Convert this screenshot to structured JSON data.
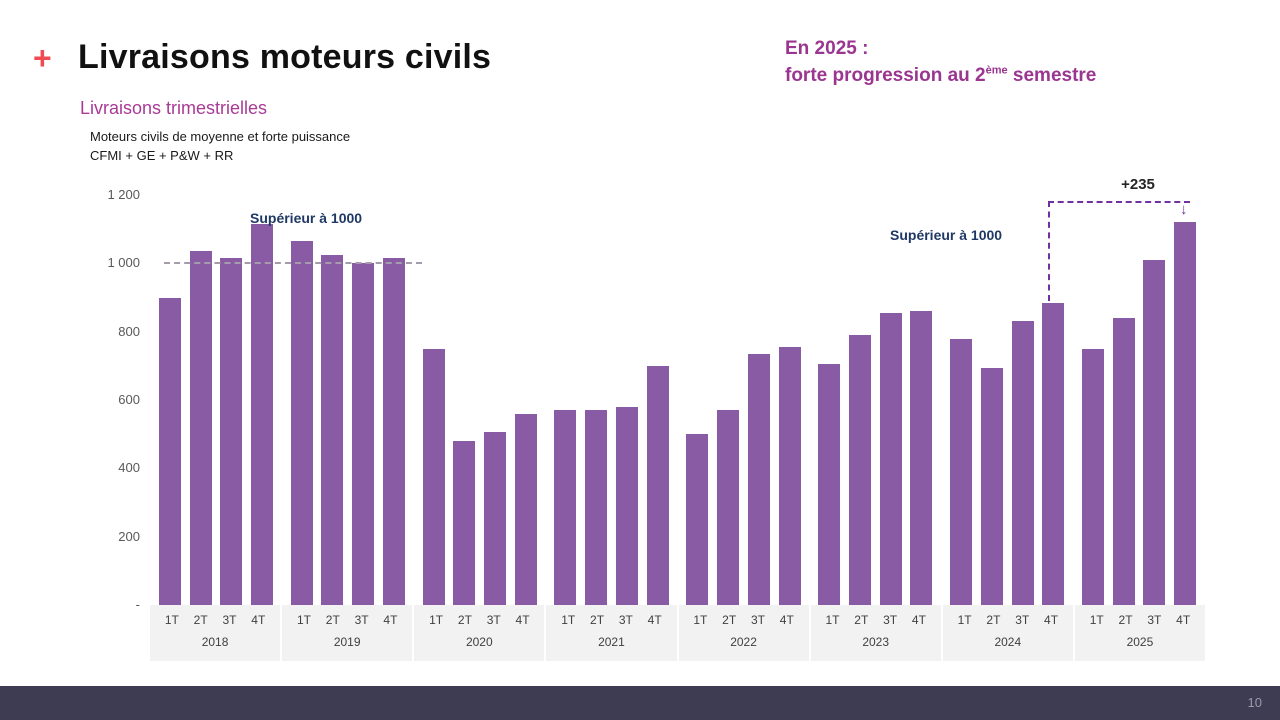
{
  "slide": {
    "plus_marker": "+",
    "title": "Livraisons moteurs civils",
    "subtitle": "Livraisons trimestrielles",
    "highlight_line1": "En 2025 :",
    "highlight_line2_pre": "forte progression au 2",
    "highlight_line2_sup": "ème",
    "highlight_line2_post": " semestre",
    "page_number": "10"
  },
  "chart_data": {
    "type": "bar",
    "title_line1": "Moteurs civils de moyenne et forte puissance",
    "title_line2": "CFMI + GE + P&W + RR",
    "bar_color": "#8a5ba5",
    "ylim": [
      0,
      1200
    ],
    "y_ticks": [
      {
        "label": "1 200",
        "value": 1200
      },
      {
        "label": "1 000",
        "value": 1000
      },
      {
        "label": "800",
        "value": 800
      },
      {
        "label": "600",
        "value": 600
      },
      {
        "label": "400",
        "value": 400
      },
      {
        "label": "200",
        "value": 200
      },
      {
        "label": "-",
        "value": 0
      }
    ],
    "years": [
      "2018",
      "2019",
      "2020",
      "2021",
      "2022",
      "2023",
      "2024",
      "2025"
    ],
    "quarters": [
      "1T",
      "2T",
      "3T",
      "4T"
    ],
    "values": [
      900,
      1035,
      1015,
      1115,
      1065,
      1025,
      1000,
      1015,
      750,
      480,
      505,
      560,
      570,
      570,
      580,
      700,
      500,
      570,
      735,
      755,
      705,
      790,
      855,
      860,
      780,
      695,
      830,
      885,
      750,
      840,
      1010,
      1120
    ],
    "annotations": {
      "left_threshold": "Supérieur à 1000",
      "right_threshold": "Supérieur à 1000",
      "delta": "+235",
      "delta_arrow": "↓"
    }
  }
}
